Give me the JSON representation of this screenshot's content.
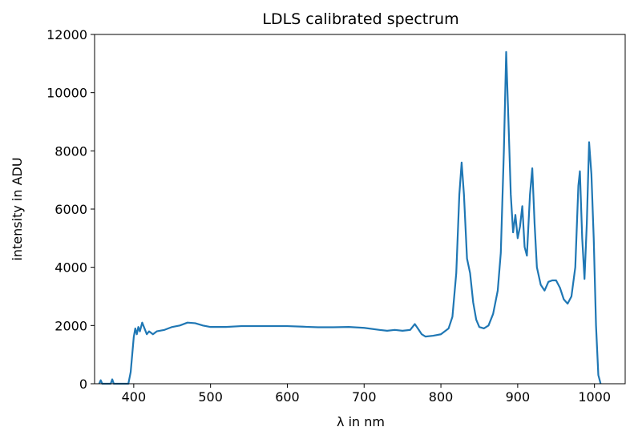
{
  "chart_data": {
    "type": "line",
    "title": "LDLS calibrated spectrum",
    "xlabel": "λ in nm",
    "ylabel": "intensity in ADU",
    "xlim": [
      349,
      1040
    ],
    "ylim": [
      0,
      12000
    ],
    "xticks": [
      400,
      500,
      600,
      700,
      800,
      900,
      1000
    ],
    "yticks": [
      0,
      2000,
      4000,
      6000,
      8000,
      10000,
      12000
    ],
    "series": [
      {
        "name": "LDLS",
        "color": "#1f77b4",
        "x": [
          355,
          357,
          359,
          370,
          372,
          374,
          393,
          396,
          400,
          402,
          404,
          406,
          408,
          411,
          414,
          417,
          420,
          425,
          430,
          440,
          450,
          460,
          470,
          480,
          490,
          500,
          520,
          540,
          560,
          580,
          600,
          620,
          640,
          660,
          680,
          700,
          720,
          730,
          740,
          750,
          760,
          766,
          770,
          775,
          780,
          790,
          800,
          810,
          815,
          820,
          824,
          827,
          830,
          834,
          838,
          842,
          846,
          850,
          856,
          862,
          868,
          874,
          878,
          882,
          885,
          888,
          891,
          894,
          897,
          900,
          903,
          906,
          909,
          912,
          916,
          919,
          922,
          925,
          930,
          935,
          940,
          945,
          950,
          955,
          960,
          965,
          970,
          975,
          979,
          981,
          984,
          987,
          990,
          993,
          996,
          999,
          1002,
          1005,
          1008
        ],
        "values": [
          0,
          120,
          0,
          0,
          150,
          0,
          0,
          400,
          1600,
          1900,
          1700,
          1950,
          1800,
          2100,
          1900,
          1700,
          1800,
          1700,
          1800,
          1850,
          1950,
          2000,
          2100,
          2080,
          2000,
          1950,
          1950,
          1980,
          1980,
          1980,
          1980,
          1960,
          1940,
          1940,
          1950,
          1920,
          1850,
          1820,
          1850,
          1820,
          1850,
          2050,
          1900,
          1700,
          1620,
          1650,
          1700,
          1900,
          2300,
          3800,
          6500,
          7600,
          6500,
          4300,
          3800,
          2800,
          2200,
          1950,
          1900,
          2000,
          2400,
          3200,
          4500,
          8000,
          11400,
          9000,
          6500,
          5200,
          5800,
          5000,
          5400,
          6100,
          4700,
          4400,
          6500,
          7400,
          5500,
          4000,
          3400,
          3200,
          3500,
          3550,
          3550,
          3300,
          2900,
          2750,
          3000,
          4000,
          6800,
          7300,
          5000,
          3600,
          5500,
          8300,
          7200,
          5000,
          2000,
          300,
          0
        ]
      }
    ]
  }
}
